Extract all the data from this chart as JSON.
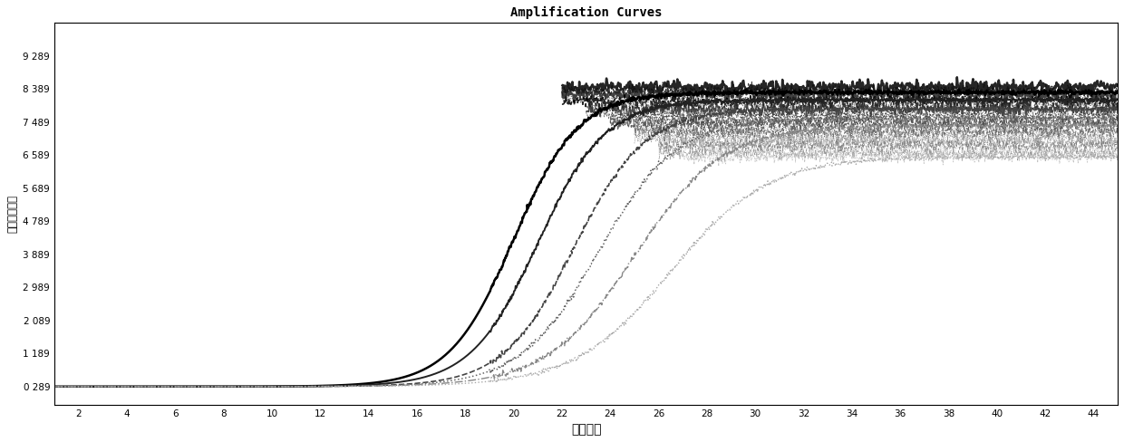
{
  "title": "Amplification Curves",
  "xlabel": "循环数，",
  "ylabel": "阈值荷光强度",
  "xlim": [
    1,
    45
  ],
  "ylim": [
    -0.2,
    10.2
  ],
  "xticks": [
    2,
    4,
    6,
    8,
    10,
    12,
    14,
    16,
    18,
    20,
    22,
    24,
    26,
    28,
    30,
    32,
    34,
    36,
    38,
    40,
    42,
    44
  ],
  "yticks": [
    0.289,
    1.189,
    2.089,
    2.989,
    3.889,
    4.789,
    5.689,
    6.589,
    7.489,
    8.389,
    9.289
  ],
  "ytick_labels": [
    "0 289",
    "1 189",
    "2 089",
    "2 989",
    "3 889",
    "4 789",
    "5 689",
    "6 589",
    "7 489",
    "8 389",
    "9 289"
  ],
  "background_color": "#ffffff",
  "main_curves": [
    {
      "midpoint": 20.0,
      "steepness": 0.75,
      "plateau": 8.3,
      "baseline": 0.289,
      "color": "#000000",
      "lw": 1.8,
      "ls": "-"
    },
    {
      "midpoint": 21.0,
      "steepness": 0.72,
      "plateau": 8.1,
      "baseline": 0.289,
      "color": "#222222",
      "lw": 1.4,
      "ls": "-"
    },
    {
      "midpoint": 22.5,
      "steepness": 0.68,
      "plateau": 7.85,
      "baseline": 0.289,
      "color": "#444444",
      "lw": 1.2,
      "ls": "--"
    },
    {
      "midpoint": 23.5,
      "steepness": 0.62,
      "plateau": 7.6,
      "baseline": 0.289,
      "color": "#666666",
      "lw": 1.1,
      "ls": ":"
    },
    {
      "midpoint": 25.0,
      "steepness": 0.55,
      "plateau": 7.4,
      "baseline": 0.289,
      "color": "#888888",
      "lw": 1.0,
      "ls": "-."
    },
    {
      "midpoint": 26.5,
      "steepness": 0.5,
      "plateau": 6.55,
      "baseline": 0.289,
      "color": "#aaaaaa",
      "lw": 1.0,
      "ls": ":"
    }
  ],
  "plateau_lines": [
    {
      "level": 8.45,
      "color": "#000000",
      "lw": 1.8,
      "ls": "-",
      "start": 22
    },
    {
      "level": 8.35,
      "color": "#111111",
      "lw": 0.8,
      "ls": "--",
      "start": 22
    },
    {
      "level": 8.25,
      "color": "#222222",
      "lw": 1.4,
      "ls": "-",
      "start": 22
    },
    {
      "level": 8.15,
      "color": "#333333",
      "lw": 0.7,
      "ls": ":",
      "start": 22
    },
    {
      "level": 8.05,
      "color": "#000000",
      "lw": 1.2,
      "ls": "--",
      "start": 22
    },
    {
      "level": 7.95,
      "color": "#444444",
      "lw": 0.6,
      "ls": "-.",
      "start": 23
    },
    {
      "level": 7.85,
      "color": "#222222",
      "lw": 1.0,
      "ls": "-",
      "start": 23
    },
    {
      "level": 7.75,
      "color": "#555555",
      "lw": 0.6,
      "ls": "--",
      "start": 23
    },
    {
      "level": 7.65,
      "color": "#333333",
      "lw": 0.9,
      "ls": ":",
      "start": 24
    },
    {
      "level": 7.55,
      "color": "#666666",
      "lw": 0.6,
      "ls": "-",
      "start": 24
    },
    {
      "level": 7.45,
      "color": "#444444",
      "lw": 0.8,
      "ls": "--",
      "start": 24
    },
    {
      "level": 7.35,
      "color": "#777777",
      "lw": 0.6,
      "ls": ":",
      "start": 25
    },
    {
      "level": 7.25,
      "color": "#555555",
      "lw": 0.7,
      "ls": "-.",
      "start": 25
    },
    {
      "level": 7.15,
      "color": "#888888",
      "lw": 0.5,
      "ls": "--",
      "start": 25
    },
    {
      "level": 7.05,
      "color": "#666666",
      "lw": 0.6,
      "ls": ":",
      "start": 25
    },
    {
      "level": 6.95,
      "color": "#999999",
      "lw": 0.5,
      "ls": "-",
      "start": 26
    },
    {
      "level": 6.85,
      "color": "#777777",
      "lw": 0.6,
      "ls": "--",
      "start": 26
    },
    {
      "level": 6.75,
      "color": "#aaaaaa",
      "lw": 0.5,
      "ls": ":",
      "start": 26
    },
    {
      "level": 6.65,
      "color": "#888888",
      "lw": 0.5,
      "ls": "-.",
      "start": 26
    },
    {
      "level": 6.55,
      "color": "#bbbbbb",
      "lw": 0.5,
      "ls": "--",
      "start": 27
    }
  ],
  "noise_seed": 77,
  "noise_amp": 0.08
}
